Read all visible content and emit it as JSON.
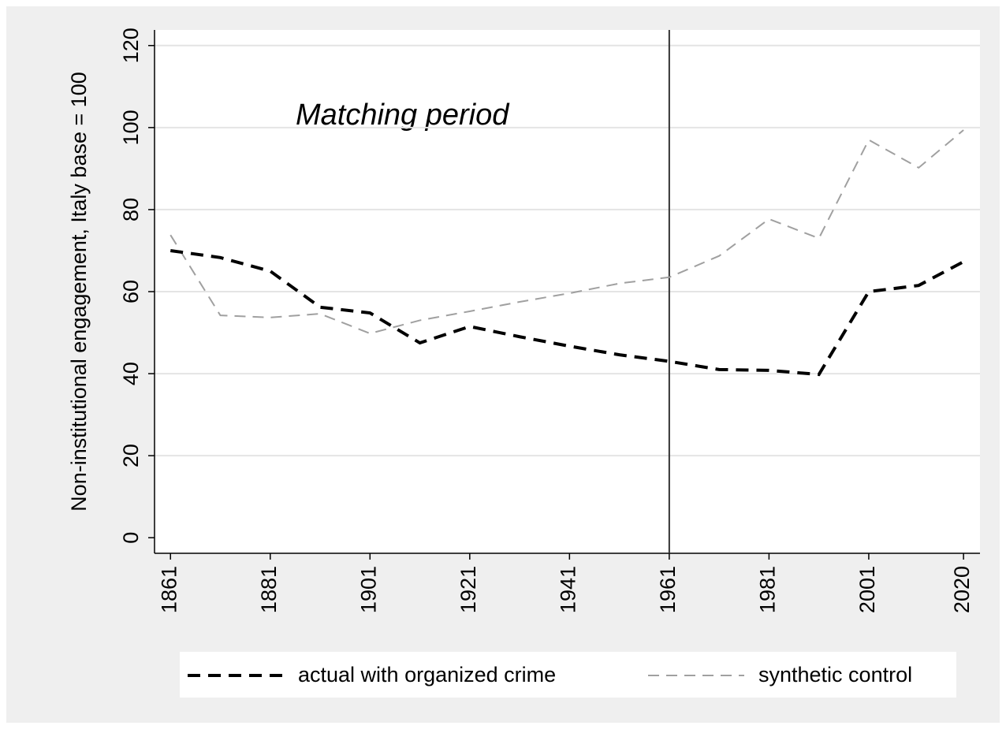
{
  "chart_data": {
    "type": "line",
    "y_label": "Non-institutional engagement, Italy base = 100",
    "annotation": "Matching period",
    "x": [
      1861,
      1871,
      1881,
      1891,
      1901,
      1911,
      1921,
      1931,
      1941,
      1951,
      1961,
      1971,
      1981,
      1991,
      2001,
      2011,
      2020
    ],
    "series": [
      {
        "name": "actual with organized crime",
        "color": "#000000",
        "values": [
          70,
          68.3,
          65,
          56.2,
          54.8,
          47.5,
          51.5,
          49,
          46.7,
          44.6,
          43,
          41,
          40.8,
          39.8,
          60,
          61.5,
          67.3
        ]
      },
      {
        "name": "synthetic control",
        "color": "#a0a0a0",
        "values": [
          73.8,
          54.2,
          53.7,
          54.6,
          49.8,
          53,
          55.2,
          57.5,
          59.6,
          62,
          63.5,
          68.7,
          77.7,
          73,
          97,
          90.2,
          99.4
        ]
      }
    ],
    "vline": 1961,
    "xlim": [
      1857.8,
      2023.3
    ],
    "xticks": [
      1861,
      1881,
      1901,
      1921,
      1941,
      1961,
      1981,
      2001,
      2020
    ],
    "ylim": [
      -3.8,
      123.8
    ],
    "yticks": [
      0,
      20,
      40,
      60,
      80,
      100,
      120
    ],
    "grid": true,
    "legend": "bottom"
  }
}
